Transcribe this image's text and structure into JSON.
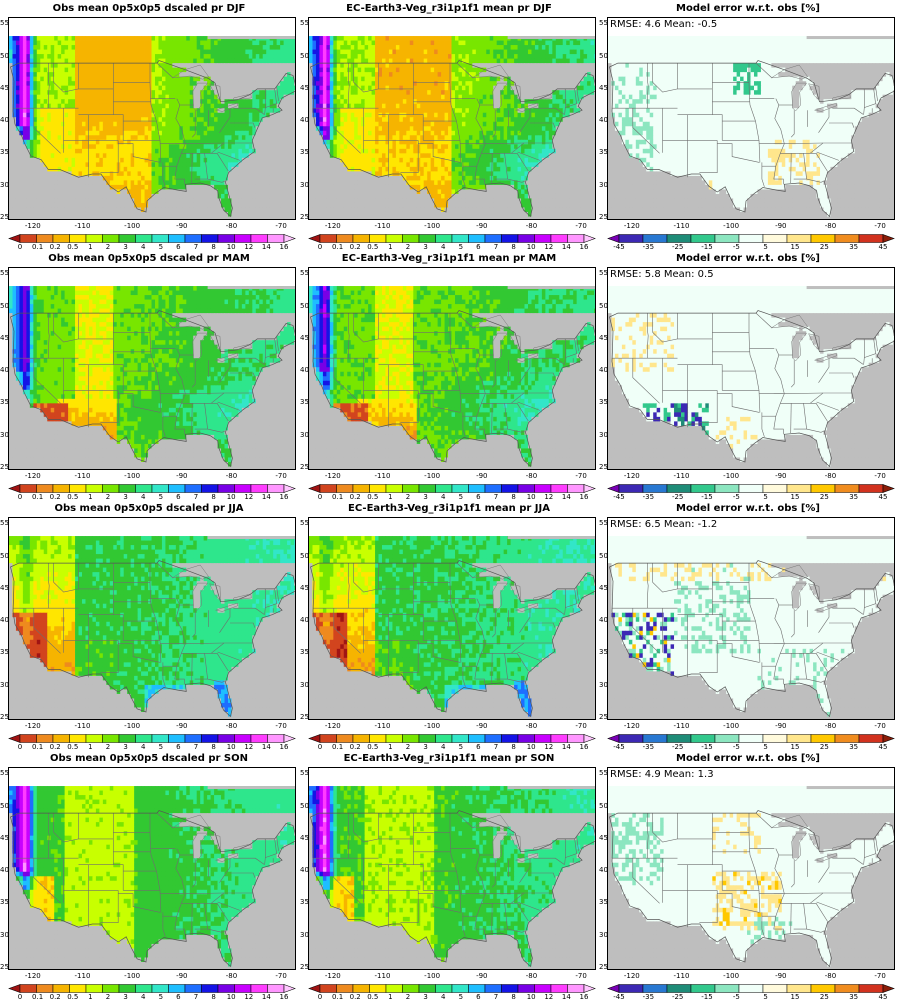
{
  "colors": {
    "land_out": "#bebebe",
    "pr_scale": [
      "#a01414",
      "#d2441e",
      "#ee8a1e",
      "#f6b400",
      "#ffe600",
      "#c8ff00",
      "#78e600",
      "#32c832",
      "#2ee68c",
      "#32e6c8",
      "#1ebeff",
      "#1e6eff",
      "#1414e6",
      "#7800e6",
      "#c800ff",
      "#ff3cff",
      "#ff96ff",
      "#ffc8ff"
    ],
    "err_scale": [
      "#7800b4",
      "#3c28b4",
      "#2878d2",
      "#1e8c78",
      "#32c88c",
      "#8ce6c0",
      "#f0fff8",
      "#fffadc",
      "#ffe68c",
      "#ffc800",
      "#f08c1e",
      "#d2321e",
      "#8c1e0a"
    ]
  },
  "row_seasons": [
    "DJF",
    "MAM",
    "JJA",
    "SON"
  ],
  "titles": {
    "obs": [
      "Obs mean 0p5x0p5 dscaled pr DJF",
      "Obs mean 0p5x0p5 dscaled pr MAM",
      "Obs mean 0p5x0p5 dscaled pr JJA",
      "Obs mean 0p5x0p5 dscaled pr SON"
    ],
    "model": [
      "EC-Earth3-Veg_r3i1p1f1 mean pr DJF",
      "EC-Earth3-Veg_r3i1p1f1 mean pr MAM",
      "EC-Earth3-Veg_r3i1p1f1 mean pr JJA",
      "EC-Earth3-Veg_r3i1p1f1 mean pr SON"
    ],
    "error": [
      "Model error w.r.t. obs [%]",
      "Model error w.r.t. obs [%]",
      "Model error w.r.t. obs [%]",
      "Model error w.r.t. obs [%]"
    ]
  },
  "stats": [
    "RMSE: 4.6  Mean: -0.5",
    "RMSE: 5.8  Mean: 0.5",
    "RMSE: 6.5  Mean: -1.2",
    "RMSE: 4.9  Mean: 1.3"
  ],
  "lat_ticks": [
    "55",
    "50",
    "45",
    "40",
    "35",
    "30",
    "25"
  ],
  "lon_ticks": [
    "-120",
    "-110",
    "-100",
    "-90",
    "-80",
    "-70"
  ],
  "pr_levels": [
    "0",
    "0.1",
    "0.2",
    "0.5",
    "1",
    "2",
    "3",
    "4",
    "5",
    "6",
    "7",
    "8",
    "10",
    "12",
    "14",
    "16"
  ],
  "err_levels": [
    "-45",
    "-35",
    "-25",
    "-15",
    "-5",
    "5",
    "15",
    "25",
    "35",
    "45"
  ],
  "map_extent": {
    "lon": [
      -125,
      -67
    ],
    "lat": [
      24.5,
      56
    ]
  }
}
